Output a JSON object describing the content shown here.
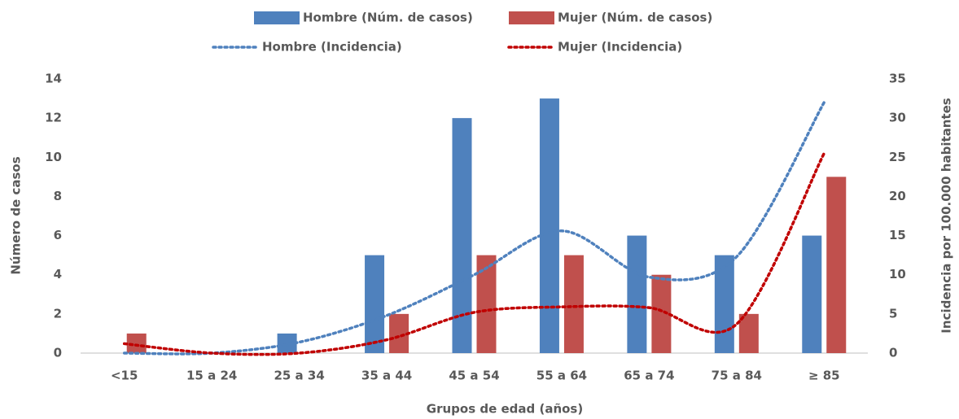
{
  "chart_data": {
    "type": "bar",
    "categories": [
      "<15",
      "15 a 24",
      "25 a 34",
      "35 a 44",
      "45 a 54",
      "55 a 64",
      "65 a 74",
      "75 a 84",
      "≥ 85"
    ],
    "x_label": "Grupos de edad (años)",
    "y_label": "Número de casos",
    "y2_label": "Incidencia por 100.000 habitantes",
    "ylim": [
      0,
      14
    ],
    "yticks": [
      0,
      2,
      4,
      6,
      8,
      10,
      12,
      14
    ],
    "y2lim": [
      0,
      35
    ],
    "y2ticks": [
      0,
      5,
      10,
      15,
      20,
      25,
      30,
      35
    ],
    "series": [
      {
        "name": "Hombre (Núm. de casos)",
        "type": "bar",
        "color": "#4f81bd",
        "values": [
          0,
          0,
          1,
          5,
          12,
          13,
          6,
          5,
          6
        ]
      },
      {
        "name": "Mujer (Núm. de casos)",
        "type": "bar",
        "color": "#c0504d",
        "values": [
          1,
          0,
          0,
          2,
          5,
          5,
          4,
          2,
          9
        ]
      },
      {
        "name": "Hombre (Incidencia)",
        "type": "line",
        "axis": "y2",
        "color": "#4f81bd",
        "values": [
          0,
          0,
          1.4,
          4.8,
          10,
          15.6,
          9.7,
          12.3,
          32
        ]
      },
      {
        "name": "Mujer (Incidencia)",
        "type": "line",
        "axis": "y2",
        "color": "#c00000",
        "values": [
          1.2,
          0,
          0,
          1.7,
          5.2,
          5.9,
          5.8,
          3.7,
          25.5
        ]
      }
    ]
  }
}
